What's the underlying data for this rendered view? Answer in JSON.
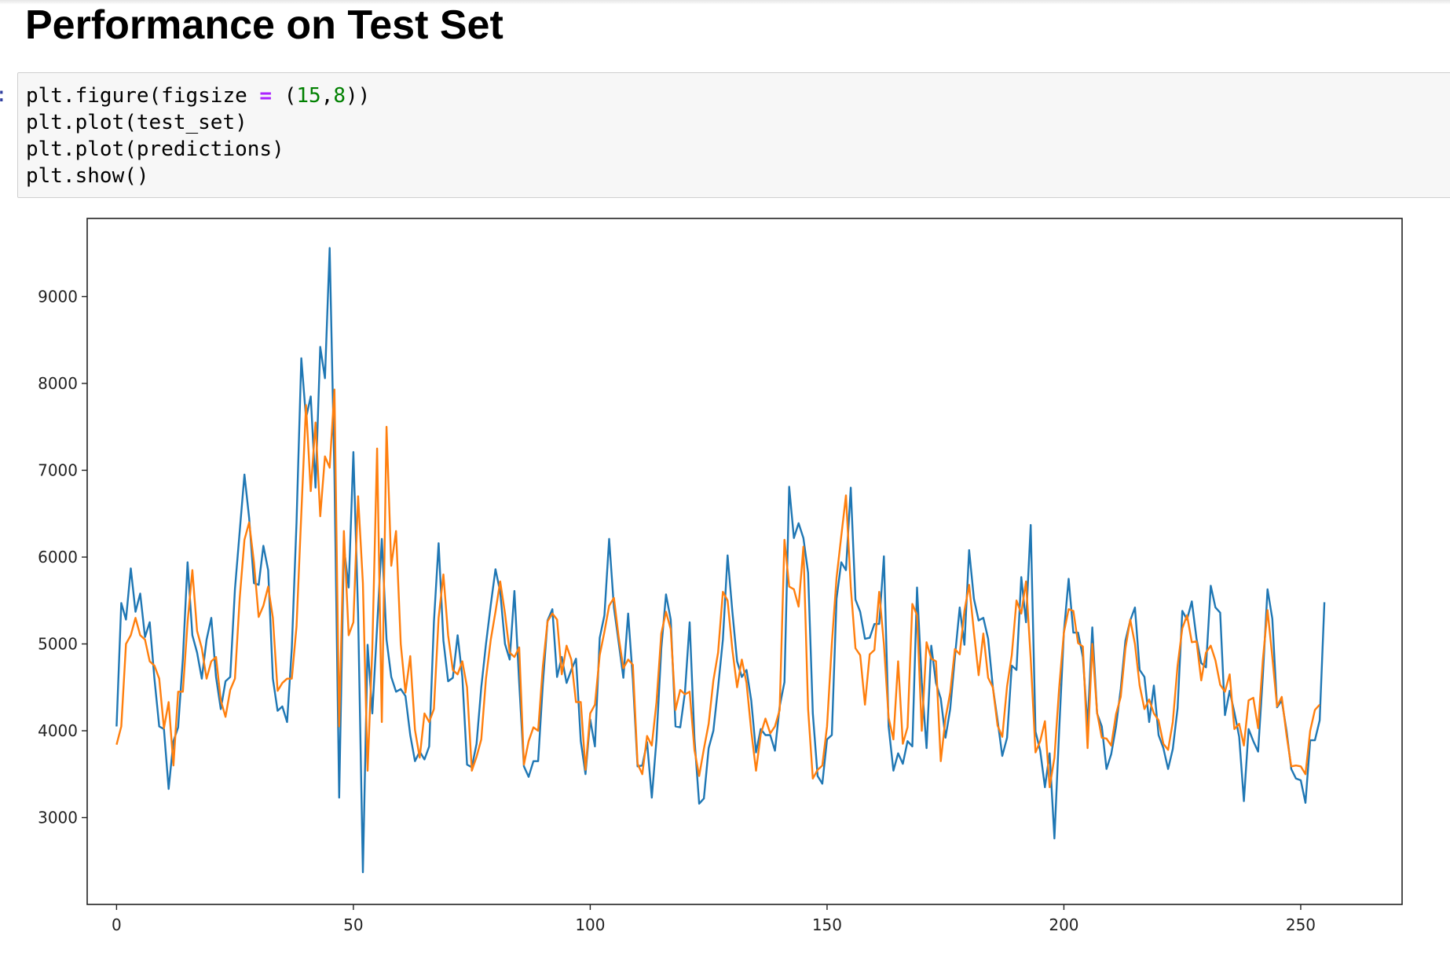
{
  "heading": "Performance on Test Set",
  "cell": {
    "prompt": ":",
    "code": [
      [
        {
          "t": "plt.figure(figsize "
        },
        {
          "t": "=",
          "c": "op"
        },
        {
          "t": " ("
        },
        {
          "t": "15",
          "c": "num"
        },
        {
          "t": ","
        },
        {
          "t": "8",
          "c": "num"
        },
        {
          "t": "))"
        }
      ],
      [
        {
          "t": "plt.plot(test_set)"
        }
      ],
      [
        {
          "t": "plt.plot(predictions)"
        }
      ],
      [
        {
          "t": "plt.show()"
        }
      ]
    ]
  },
  "colors": {
    "series_test": "#1f77b4",
    "series_pred": "#ff7f0e"
  },
  "chart_data": {
    "type": "line",
    "title": "",
    "xlabel": "",
    "ylabel": "",
    "xlim": [
      -6.2,
      271.4
    ],
    "ylim": [
      2000,
      9900
    ],
    "xticks": [
      0,
      50,
      100,
      150,
      200,
      250
    ],
    "yticks": [
      3000,
      4000,
      5000,
      6000,
      7000,
      8000,
      9000
    ],
    "grid": false,
    "legend": false,
    "series": [
      {
        "values": [
          4050,
          5470,
          5280,
          5870,
          5370,
          5580,
          5080,
          5250,
          4600,
          4050,
          4020,
          3330,
          3880,
          4040,
          4830,
          5940,
          5100,
          4900,
          4600,
          5050,
          5300,
          4620,
          4250,
          4570,
          4620,
          5630,
          6300,
          6950,
          6450,
          5700,
          5680,
          6130,
          5850,
          4600,
          4230,
          4280,
          4100,
          4950,
          6400,
          8290,
          7600,
          7850,
          6800,
          8420,
          8060,
          9560,
          6950,
          3230,
          6120,
          5650,
          7210,
          5350,
          2370,
          4990,
          4200,
          5200,
          6210,
          5050,
          4620,
          4450,
          4480,
          4400,
          3950,
          3650,
          3760,
          3670,
          3820,
          5250,
          6160,
          5040,
          4570,
          4610,
          5100,
          4620,
          3610,
          3580,
          3850,
          4500,
          5000,
          5450,
          5860,
          5600,
          5000,
          4820,
          5610,
          4550,
          3590,
          3470,
          3650,
          3650,
          4540,
          5270,
          5400,
          4620,
          4850,
          4550,
          4700,
          4830,
          3880,
          3500,
          4130,
          3820,
          5070,
          5330,
          6210,
          5420,
          5020,
          4610,
          5350,
          4590,
          3590,
          3600,
          3870,
          3230,
          3900,
          4950,
          5570,
          5280,
          4050,
          4040,
          4440,
          5250,
          3910,
          3160,
          3220,
          3800,
          4000,
          4500,
          5050,
          6020,
          5380,
          4800,
          4620,
          4700,
          4350,
          3750,
          4020,
          3950,
          3950,
          3770,
          4280,
          4560,
          6810,
          6220,
          6390,
          6220,
          5820,
          4200,
          3480,
          3390,
          3900,
          3950,
          5520,
          5940,
          5850,
          6800,
          5510,
          5370,
          5060,
          5070,
          5230,
          5230,
          6010,
          4050,
          3540,
          3740,
          3620,
          3880,
          3820,
          5650,
          4560,
          3800,
          4980,
          4550,
          4370,
          3920,
          4250,
          4850,
          5420,
          4990,
          6080,
          5520,
          5270,
          5300,
          5060,
          4500,
          4120,
          3710,
          3920,
          4750,
          4700,
          5770,
          5250,
          6370,
          3990,
          3770,
          3350,
          3740,
          2760,
          4000,
          5130,
          5750,
          5130,
          5130,
          4850,
          4050,
          5190,
          4200,
          4050,
          3560,
          3730,
          4050,
          4480,
          5040,
          5270,
          5420,
          4700,
          4620,
          4100,
          4520,
          3950,
          3800,
          3560,
          3790,
          4260,
          5380,
          5280,
          5490,
          5060,
          4780,
          4730,
          5670,
          5420,
          5360,
          4180,
          4460,
          4210,
          3930,
          3190,
          4020,
          3880,
          3760,
          4630,
          5630,
          5290,
          4270,
          4350,
          4000,
          3560,
          3450,
          3430,
          3170,
          3890,
          3890,
          4120,
          5480
        ]
      },
      {
        "values": [
          3840,
          4050,
          5000,
          5100,
          5300,
          5100,
          5050,
          4800,
          4750,
          4600,
          4030,
          4330,
          3600,
          4450,
          4450,
          5250,
          5850,
          5150,
          4950,
          4600,
          4800,
          4850,
          4350,
          4160,
          4470,
          4600,
          5530,
          6200,
          6400,
          5940,
          5310,
          5440,
          5660,
          5300,
          4460,
          4550,
          4600,
          4600,
          5200,
          6500,
          7750,
          6760,
          7550,
          6470,
          7160,
          7030,
          7930,
          4050,
          6300,
          5100,
          5250,
          6700,
          5700,
          3540,
          4950,
          7250,
          4100,
          7500,
          5900,
          6300,
          5000,
          4440,
          4860,
          4010,
          3690,
          4200,
          4100,
          4250,
          5300,
          5800,
          5100,
          4700,
          4650,
          4800,
          4500,
          3540,
          3700,
          3900,
          4600,
          5050,
          5370,
          5720,
          5350,
          4900,
          4850,
          4960,
          3610,
          3880,
          4040,
          4000,
          4740,
          5260,
          5350,
          5280,
          4650,
          4980,
          4820,
          4330,
          4330,
          3550,
          4200,
          4300,
          4870,
          5140,
          5440,
          5530,
          5080,
          4720,
          4820,
          4760,
          3620,
          3500,
          3940,
          3830,
          4330,
          5120,
          5370,
          5170,
          4240,
          4470,
          4420,
          4450,
          3780,
          3480,
          3790,
          4080,
          4580,
          4900,
          5600,
          5500,
          4940,
          4500,
          4820,
          4550,
          4000,
          3540,
          3960,
          4140,
          3970,
          4050,
          4240,
          6200,
          5660,
          5630,
          5430,
          6120,
          4250,
          3450,
          3550,
          3600,
          4050,
          5000,
          5760,
          6240,
          6710,
          5660,
          4950,
          4870,
          4300,
          4880,
          4930,
          5600,
          5000,
          4150,
          3900,
          4800,
          3850,
          4040,
          5460,
          5330,
          4000,
          5020,
          4830,
          4800,
          3650,
          4140,
          4440,
          4940,
          4880,
          5380,
          5680,
          5140,
          4640,
          5120,
          4610,
          4500,
          4060,
          3930,
          4510,
          4870,
          5500,
          5350,
          5720,
          4830,
          3750,
          3880,
          4110,
          3350,
          3690,
          4490,
          5130,
          5400,
          5380,
          5010,
          4970,
          3800,
          5000,
          4210,
          3920,
          3910,
          3830,
          4190,
          4390,
          4950,
          5280,
          5000,
          4520,
          4250,
          4360,
          4200,
          4120,
          3850,
          3780,
          4100,
          4750,
          5180,
          5330,
          5020,
          5030,
          4580,
          4900,
          4980,
          4810,
          4530,
          4450,
          4650,
          4020,
          4080,
          3830,
          4350,
          4380,
          4030,
          4810,
          5390,
          4850,
          4280,
          4390,
          3950,
          3590,
          3600,
          3590,
          3500,
          4000,
          4240,
          4300
        ]
      }
    ]
  }
}
